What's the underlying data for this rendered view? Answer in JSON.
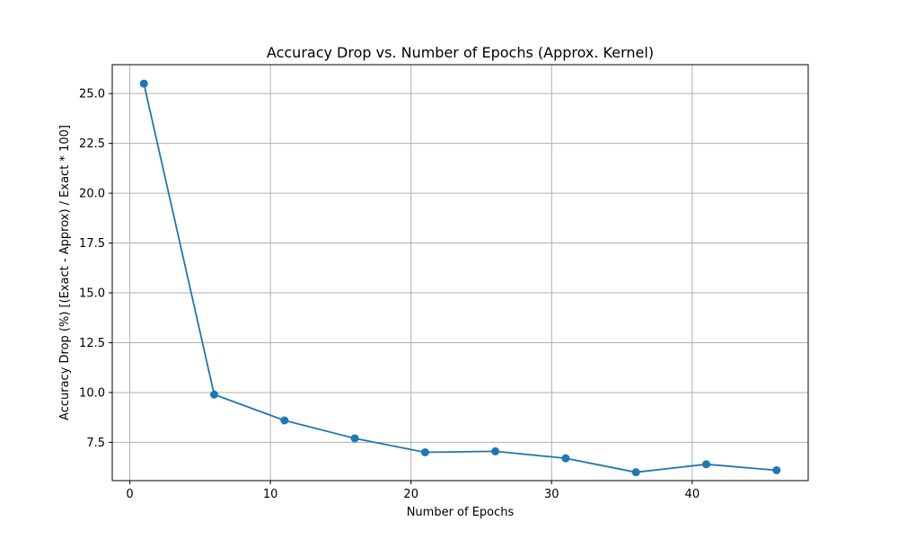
{
  "chart_data": {
    "type": "line",
    "title": "Accuracy Drop vs. Number of Epochs (Approx. Kernel)",
    "xlabel": "Number of Epochs",
    "ylabel": "Accuracy Drop (%) [(Exact - Approx) / Exact * 100]",
    "xlim": [
      -1.25,
      48.25
    ],
    "ylim": [
      5.58,
      26.45
    ],
    "xticks": [
      0,
      10,
      20,
      30,
      40
    ],
    "yticks": [
      7.5,
      10.0,
      12.5,
      15.0,
      17.5,
      20.0,
      22.5,
      25.0
    ],
    "xtick_labels": [
      "0",
      "10",
      "20",
      "30",
      "40"
    ],
    "ytick_labels": [
      "7.5",
      "10.0",
      "12.5",
      "15.0",
      "17.5",
      "20.0",
      "22.5",
      "25.0"
    ],
    "grid": true,
    "series": [
      {
        "x": [
          1,
          6,
          11,
          16,
          21,
          26,
          31,
          36,
          41,
          46
        ],
        "y": [
          25.5,
          9.9,
          8.6,
          7.7,
          7.0,
          7.05,
          6.7,
          6.0,
          6.4,
          6.1
        ],
        "color": "#1f77b4",
        "marker": "circle"
      }
    ]
  }
}
